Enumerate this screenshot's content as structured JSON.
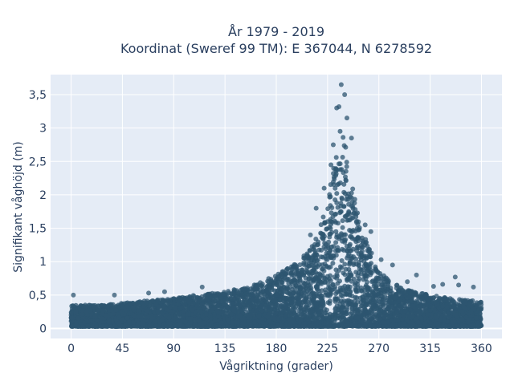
{
  "chart_data": {
    "type": "scatter",
    "title": "År 1979 - 2019",
    "subtitle": "Koordinat (Sweref 99 TM): E 367044, N 6278592",
    "xlabel": "Vågriktning (grader)",
    "ylabel": "Signifikant våghöjd (m)",
    "xlim": [
      -18,
      378
    ],
    "ylim": [
      -0.15,
      3.8
    ],
    "xticks": [
      0,
      45,
      90,
      135,
      180,
      225,
      270,
      315,
      360
    ],
    "xtick_labels": [
      "0",
      "45",
      "90",
      "135",
      "180",
      "225",
      "270",
      "315",
      "360"
    ],
    "yticks": [
      0,
      0.5,
      1,
      1.5,
      2,
      2.5,
      3,
      3.5
    ],
    "ytick_labels": [
      "0",
      "0,5",
      "1",
      "1,5",
      "2",
      "2,5",
      "3",
      "3,5"
    ],
    "grid": true,
    "marker_color": "#2e5670",
    "background": "#e5ecf6",
    "envelope": {
      "x": [
        0,
        20,
        45,
        70,
        90,
        110,
        135,
        160,
        180,
        200,
        215,
        225,
        232,
        238,
        245,
        255,
        270,
        290,
        315,
        335,
        360
      ],
      "y_min": [
        0.03,
        0.03,
        0.03,
        0.03,
        0.03,
        0.03,
        0.03,
        0.03,
        0.03,
        0.03,
        0.03,
        0.03,
        0.03,
        0.03,
        0.03,
        0.03,
        0.03,
        0.03,
        0.03,
        0.03,
        0.03
      ],
      "y_max": [
        0.35,
        0.35,
        0.38,
        0.42,
        0.45,
        0.5,
        0.55,
        0.65,
        0.8,
        1.0,
        1.35,
        1.9,
        2.6,
        3.0,
        2.3,
        1.5,
        0.85,
        0.6,
        0.5,
        0.45,
        0.4
      ]
    },
    "outliers": [
      {
        "x": 237,
        "y": 3.65
      },
      {
        "x": 240,
        "y": 3.5
      },
      {
        "x": 235,
        "y": 3.32
      },
      {
        "x": 233,
        "y": 3.3
      },
      {
        "x": 242,
        "y": 3.15
      },
      {
        "x": 236,
        "y": 2.95
      },
      {
        "x": 246,
        "y": 2.85
      },
      {
        "x": 230,
        "y": 2.75
      },
      {
        "x": 228,
        "y": 2.45
      },
      {
        "x": 222,
        "y": 2.1
      },
      {
        "x": 215,
        "y": 1.8
      },
      {
        "x": 258,
        "y": 1.55
      },
      {
        "x": 263,
        "y": 1.45
      },
      {
        "x": 210,
        "y": 1.4
      },
      {
        "x": 272,
        "y": 1.03
      },
      {
        "x": 282,
        "y": 0.95
      },
      {
        "x": 303,
        "y": 0.8
      },
      {
        "x": 337,
        "y": 0.77
      },
      {
        "x": 340,
        "y": 0.65
      },
      {
        "x": 353,
        "y": 0.62
      },
      {
        "x": 2,
        "y": 0.5
      },
      {
        "x": 38,
        "y": 0.5
      },
      {
        "x": 68,
        "y": 0.53
      },
      {
        "x": 82,
        "y": 0.55
      },
      {
        "x": 115,
        "y": 0.62
      },
      {
        "x": 326,
        "y": 0.66
      },
      {
        "x": 318,
        "y": 0.63
      },
      {
        "x": 295,
        "y": 0.7
      }
    ]
  }
}
